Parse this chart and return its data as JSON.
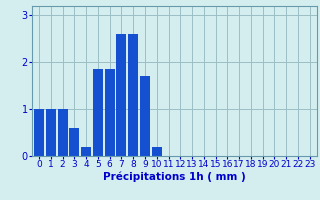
{
  "values": [
    1.0,
    1.0,
    1.0,
    0.6,
    0.2,
    1.85,
    1.85,
    2.6,
    2.6,
    1.7,
    0.2,
    0,
    0,
    0,
    0,
    0,
    0,
    0,
    0,
    0,
    0,
    0,
    0,
    0
  ],
  "bar_color": "#1450d0",
  "background_color": "#d4eef0",
  "grid_color": "#9bbfc4",
  "xlabel": "Précipitations 1h ( mm )",
  "xlabel_color": "#0000cc",
  "tick_color": "#0000cc",
  "axis_color": "#6699aa",
  "ylim": [
    0,
    3.2
  ],
  "yticks": [
    0,
    1,
    2,
    3
  ],
  "bar_width": 0.85,
  "tick_fontsize": 6.5,
  "xlabel_fontsize": 7.5
}
